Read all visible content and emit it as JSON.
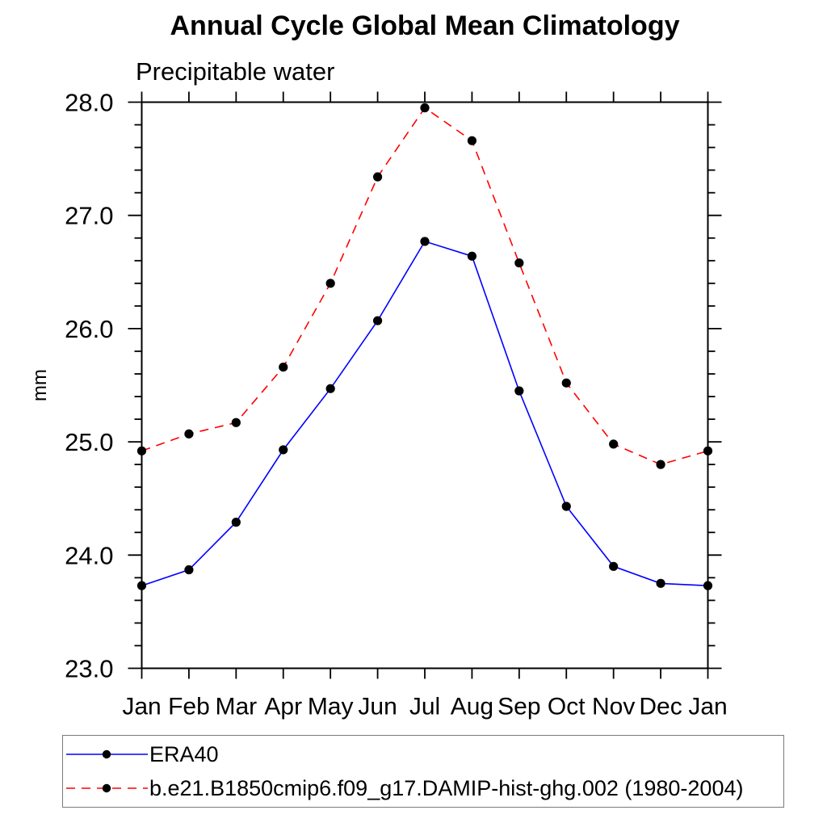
{
  "chart": {
    "title": "Annual Cycle Global Mean Climatology",
    "subtitle": "Precipitable water",
    "ylabel": "mm"
  },
  "chart_data": {
    "type": "line",
    "title": "Annual Cycle Global Mean Climatology",
    "subtitle": "Precipitable water",
    "xlabel": "",
    "ylabel": "mm",
    "categories": [
      "Jan",
      "Feb",
      "Mar",
      "Apr",
      "May",
      "Jun",
      "Jul",
      "Aug",
      "Sep",
      "Oct",
      "Nov",
      "Dec",
      "Jan"
    ],
    "ylim": [
      23.0,
      28.0
    ],
    "y_major_step": 1.0,
    "y_minor_step": 0.2,
    "y_tick_labels": [
      "23.0",
      "24.0",
      "25.0",
      "26.0",
      "27.0",
      "28.0"
    ],
    "grid": false,
    "legend_position": "bottom-outside",
    "frame_color": "#000000",
    "marker": "filled-circle",
    "marker_color": "#000000",
    "series": [
      {
        "name": "ERA40",
        "color": "#0000ff",
        "line_style": "solid",
        "values": [
          23.73,
          23.87,
          24.29,
          24.93,
          25.47,
          26.07,
          26.77,
          26.64,
          25.45,
          24.43,
          23.9,
          23.75,
          23.73
        ]
      },
      {
        "name": "b.e21.B1850cmip6.f09_g17.DAMIP-hist-ghg.002 (1980-2004)",
        "color": "#ff0000",
        "line_style": "dashed",
        "values": [
          24.92,
          25.07,
          25.17,
          25.66,
          26.4,
          27.34,
          27.95,
          27.66,
          26.58,
          25.52,
          24.98,
          24.8,
          24.92
        ]
      }
    ]
  },
  "legend": {
    "border_color": "#7a7a7a"
  }
}
